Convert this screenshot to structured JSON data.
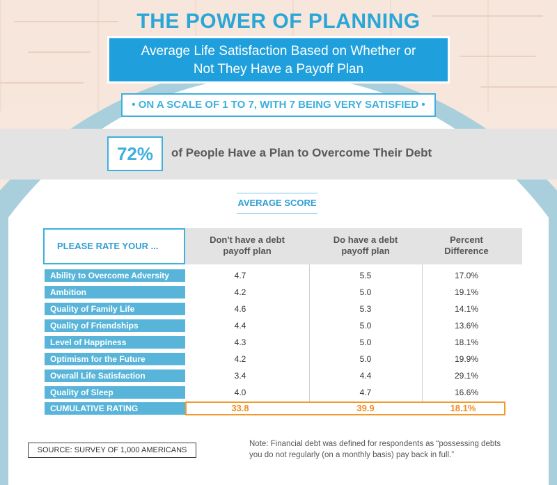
{
  "header": {
    "title": "THE POWER OF PLANNING",
    "subtitle_line1": "Average Life Satisfaction Based on Whether or",
    "subtitle_line2": "Not They Have a Payoff Plan",
    "scale_note": "• ON A SCALE OF 1 TO 7, WITH 7 BEING VERY SATISFIED •"
  },
  "highlight": {
    "percent": "72%",
    "text": "of People Have a Plan to Overcome Their Debt"
  },
  "chart_data": {
    "type": "table",
    "title": "AVERAGE SCORE",
    "row_header": "PLEASE RATE YOUR ...",
    "columns": [
      {
        "line1": "Don't have a debt",
        "line2": "payoff plan"
      },
      {
        "line1": "Do have a debt",
        "line2": "payoff plan"
      },
      {
        "line1": "Percent",
        "line2": "Difference"
      }
    ],
    "rows": [
      {
        "label": "Ability to Overcome Adversity",
        "no_plan": "4.7",
        "plan": "5.5",
        "diff": "17.0%"
      },
      {
        "label": "Ambition",
        "no_plan": "4.2",
        "plan": "5.0",
        "diff": "19.1%"
      },
      {
        "label": "Quality of Family Life",
        "no_plan": "4.6",
        "plan": "5.3",
        "diff": "14.1%"
      },
      {
        "label": "Quality of Friendships",
        "no_plan": "4.4",
        "plan": "5.0",
        "diff": "13.6%"
      },
      {
        "label": "Level of Happiness",
        "no_plan": "4.3",
        "plan": "5.0",
        "diff": "18.1%"
      },
      {
        "label": "Optimism for the Future",
        "no_plan": "4.2",
        "plan": "5.0",
        "diff": "19.9%"
      },
      {
        "label": "Overall Life Satisfaction",
        "no_plan": "3.4",
        "plan": "4.4",
        "diff": "29.1%"
      },
      {
        "label": "Quality of Sleep",
        "no_plan": "4.0",
        "plan": "4.7",
        "diff": "16.6%"
      }
    ],
    "cumulative": {
      "label": "CUMULATIVE RATING",
      "no_plan": "33.8",
      "plan": "39.9",
      "diff": "18.1%"
    }
  },
  "footer": {
    "source": "SOURCE: SURVEY OF 1,000 AMERICANS",
    "note_line1": "Note: Financial debt was defined for respondents as “possessing debts",
    "note_line2": "you do not regularly (on a monthly basis) pay back in full.”"
  },
  "colors": {
    "accent_blue": "#2aa6d7",
    "label_blue": "#58b5d9",
    "highlight_orange": "#f28b1b",
    "band_gray": "#e3e3e3"
  }
}
